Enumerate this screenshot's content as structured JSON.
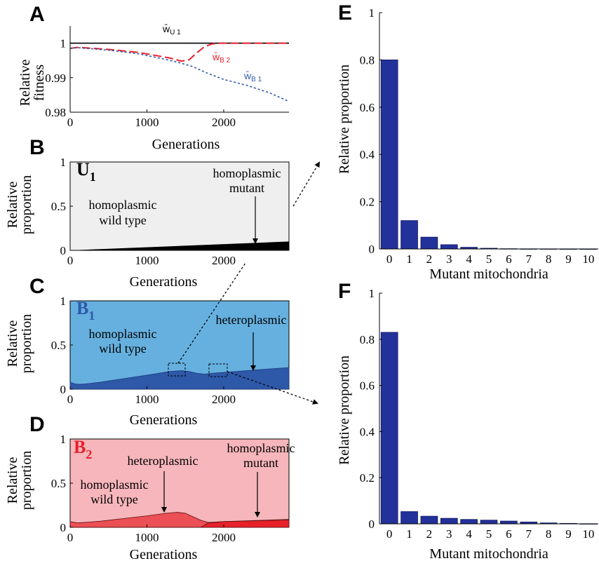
{
  "panel_letters": {
    "a": "A",
    "b": "B",
    "c": "C",
    "d": "D",
    "e": "E",
    "f": "F"
  },
  "colors": {
    "u1_bg": "#efefef",
    "u1_fill": "#000000",
    "b1_bg": "#66b0df",
    "b1_fill": "#2e58a8",
    "b1_text": "#2e58a8",
    "b2_bg": "#f6b6bb",
    "b2_het": "#ec4f55",
    "b2_mut": "#e8202a",
    "b2_text": "#e8202a",
    "bar": "#23319a",
    "u1_line": "#000000",
    "b2_line": "#e8202a",
    "b1_line": "#2e58a8"
  },
  "chart_data": [
    {
      "id": "A",
      "type": "line",
      "ylabel": [
        "Relative",
        "fitness"
      ],
      "xlabel": "Generations",
      "xlim": [
        0,
        2850
      ],
      "ylim": [
        0.98,
        1.005
      ],
      "xticks": [
        "0",
        "1000",
        "2000"
      ],
      "yticks": [
        "0.98",
        "0.99",
        "1"
      ],
      "series": [
        {
          "name": "w̄U1",
          "sym": "w̄",
          "sub": "U 1",
          "x": [
            0,
            2850
          ],
          "y": [
            1,
            1
          ]
        },
        {
          "name": "w̄B2",
          "sym": "w̄",
          "sub": "B 2",
          "x": [
            0,
            100,
            500,
            900,
            1300,
            1450,
            1550,
            1650,
            1750,
            1850,
            1950,
            2100,
            2850
          ],
          "y": [
            0.9985,
            0.9988,
            0.9982,
            0.9973,
            0.9957,
            0.9948,
            0.9952,
            0.9972,
            0.999,
            0.9998,
            1,
            1,
            1
          ]
        },
        {
          "name": "w̄B1",
          "sym": "w̄",
          "sub": "B 1",
          "x": [
            0,
            100,
            500,
            900,
            1200,
            1400,
            1600,
            1800,
            2000,
            2300,
            2600,
            2850
          ],
          "y": [
            0.9985,
            0.9987,
            0.998,
            0.9969,
            0.9955,
            0.9945,
            0.9932,
            0.9912,
            0.9895,
            0.9878,
            0.9856,
            0.9831
          ]
        }
      ]
    },
    {
      "id": "B",
      "type": "area",
      "label": "U",
      "label_sub": "1",
      "ylabel": [
        "Relative",
        "proportion"
      ],
      "xlabel": "Generations",
      "xlim": [
        0,
        2850
      ],
      "ylim": [
        0,
        1
      ],
      "xticks": [
        "0",
        "1000",
        "2000"
      ],
      "yticks": [
        "0",
        "0.5",
        "1"
      ],
      "annotations": [
        "homoplasmic",
        "wild type",
        "homoplasmic",
        "mutant"
      ],
      "series": [
        {
          "name": "homoplasmic mutant",
          "x": [
            0,
            2850
          ],
          "y": [
            0,
            0.1
          ]
        }
      ]
    },
    {
      "id": "C",
      "type": "area",
      "label": "B",
      "label_sub": "1",
      "ylabel": [
        "Relative",
        "proportion"
      ],
      "xlabel": "Generations",
      "xlim": [
        0,
        2850
      ],
      "ylim": [
        0,
        1
      ],
      "xticks": [
        "0",
        "1000",
        "2000"
      ],
      "yticks": [
        "0",
        "0.5",
        "1"
      ],
      "annotations": [
        "homoplasmic",
        "wild type",
        "heteroplasmic"
      ],
      "series": [
        {
          "name": "heteroplasmic",
          "x": [
            0,
            60,
            120,
            200,
            400,
            700,
            1000,
            1300,
            1450,
            1550,
            1650,
            1750,
            1850,
            2000,
            2300,
            2600,
            2850
          ],
          "y": [
            0.08,
            0.06,
            0.055,
            0.06,
            0.08,
            0.12,
            0.16,
            0.2,
            0.21,
            0.2,
            0.18,
            0.17,
            0.18,
            0.19,
            0.21,
            0.23,
            0.245
          ]
        }
      ]
    },
    {
      "id": "D",
      "type": "area",
      "label": "B",
      "label_sub": "2",
      "ylabel": [
        "Relative",
        "proportion"
      ],
      "xlabel": "Generations",
      "xlim": [
        0,
        2850
      ],
      "ylim": [
        0,
        1
      ],
      "xticks": [
        "0",
        "1000",
        "2000"
      ],
      "yticks": [
        "0",
        "0.5",
        "1"
      ],
      "annotations": [
        "heteroplasmic",
        "homoplasmic",
        "mutant",
        "homoplasmic",
        "wild type"
      ],
      "series": [
        {
          "name": "homoplasmic mutant",
          "x": [
            0,
            1700,
            1800,
            2000,
            2850
          ],
          "y": [
            0,
            0,
            0.05,
            0.065,
            0.085
          ]
        },
        {
          "name": "heteroplasmic",
          "x": [
            0,
            100,
            400,
            700,
            1000,
            1250,
            1400,
            1500,
            1600,
            1700,
            1800,
            2000,
            2850
          ],
          "y": [
            0.065,
            0.05,
            0.07,
            0.1,
            0.13,
            0.16,
            0.17,
            0.16,
            0.12,
            0.08,
            0.055,
            0.065,
            0.09
          ]
        }
      ]
    },
    {
      "id": "E",
      "type": "bar",
      "ylabel": "Relative proportion",
      "xlabel": "Mutant mitochondria",
      "categories": [
        "0",
        "1",
        "2",
        "3",
        "4",
        "5",
        "6",
        "7",
        "8",
        "9",
        "10"
      ],
      "values": [
        0.8,
        0.12,
        0.05,
        0.018,
        0.007,
        0.003,
        0.001,
        0.0005,
        0.0003,
        0.0002,
        0.0001
      ],
      "ylim": [
        0,
        1
      ],
      "yticks": [
        "0",
        "0.2",
        "0.4",
        "0.6",
        "0.8",
        "1"
      ]
    },
    {
      "id": "F",
      "type": "bar",
      "ylabel": "Relative proportion",
      "xlabel": "Mutant mitochondria",
      "categories": [
        "0",
        "1",
        "2",
        "3",
        "4",
        "5",
        "6",
        "7",
        "8",
        "9",
        "10"
      ],
      "values": [
        0.83,
        0.053,
        0.033,
        0.024,
        0.019,
        0.016,
        0.012,
        0.008,
        0.004,
        0.002,
        0.0005
      ],
      "ylim": [
        0,
        1
      ],
      "yticks": [
        "0",
        "0.2",
        "0.4",
        "0.6",
        "0.8",
        "1"
      ]
    }
  ]
}
